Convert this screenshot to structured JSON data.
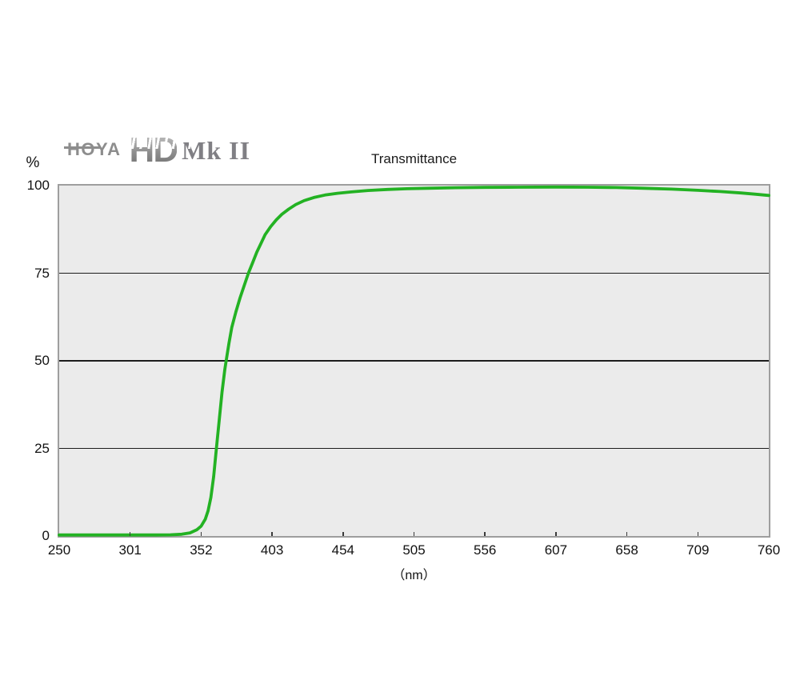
{
  "logo": {
    "brand": "HOYA",
    "mark": "HD",
    "variant": "Mk II"
  },
  "chart_data": {
    "type": "line",
    "title": "Transmittance",
    "xlabel": "（nm）",
    "ylabel": "%",
    "xlim": [
      250,
      760
    ],
    "ylim": [
      0,
      100
    ],
    "x_ticks": [
      250,
      301,
      352,
      403,
      454,
      505,
      556,
      607,
      658,
      709,
      760
    ],
    "y_ticks": [
      0,
      25,
      50,
      75,
      100
    ],
    "gridlines_y": [
      25,
      50,
      75
    ],
    "grid": "horizontal",
    "legend": "none",
    "colors": {
      "curve": "#23b223",
      "plot_background": "#ebebeb",
      "grid": "#1c1c1c",
      "border": "#9e9e9e"
    },
    "series": [
      {
        "name": "HOYA HD Mk II transmittance",
        "color": "#23b223",
        "points": [
          [
            250,
            0.3
          ],
          [
            270,
            0.3
          ],
          [
            290,
            0.3
          ],
          [
            305,
            0.3
          ],
          [
            320,
            0.3
          ],
          [
            330,
            0.35
          ],
          [
            338,
            0.5
          ],
          [
            344,
            0.9
          ],
          [
            349,
            1.8
          ],
          [
            352,
            2.8
          ],
          [
            355,
            4.8
          ],
          [
            357,
            7.2
          ],
          [
            359,
            11
          ],
          [
            361,
            17
          ],
          [
            362,
            21
          ],
          [
            363,
            25
          ],
          [
            365,
            33
          ],
          [
            367,
            41
          ],
          [
            369,
            47.5
          ],
          [
            370,
            50
          ],
          [
            372,
            55
          ],
          [
            374,
            59.5
          ],
          [
            377,
            64
          ],
          [
            380,
            68
          ],
          [
            383,
            71.5
          ],
          [
            386,
            75
          ],
          [
            389,
            78
          ],
          [
            392,
            81
          ],
          [
            395,
            83.5
          ],
          [
            398,
            86
          ],
          [
            402,
            88.3
          ],
          [
            406,
            90.2
          ],
          [
            410,
            91.8
          ],
          [
            415,
            93.3
          ],
          [
            420,
            94.6
          ],
          [
            426,
            95.7
          ],
          [
            433,
            96.6
          ],
          [
            441,
            97.3
          ],
          [
            450,
            97.8
          ],
          [
            460,
            98.2
          ],
          [
            472,
            98.6
          ],
          [
            486,
            98.9
          ],
          [
            500,
            99.1
          ],
          [
            515,
            99.25
          ],
          [
            535,
            99.4
          ],
          [
            556,
            99.5
          ],
          [
            580,
            99.55
          ],
          [
            607,
            99.6
          ],
          [
            630,
            99.55
          ],
          [
            650,
            99.45
          ],
          [
            670,
            99.25
          ],
          [
            690,
            99.0
          ],
          [
            709,
            98.65
          ],
          [
            725,
            98.3
          ],
          [
            740,
            97.9
          ],
          [
            750,
            97.55
          ],
          [
            760,
            97.2
          ]
        ]
      }
    ]
  }
}
